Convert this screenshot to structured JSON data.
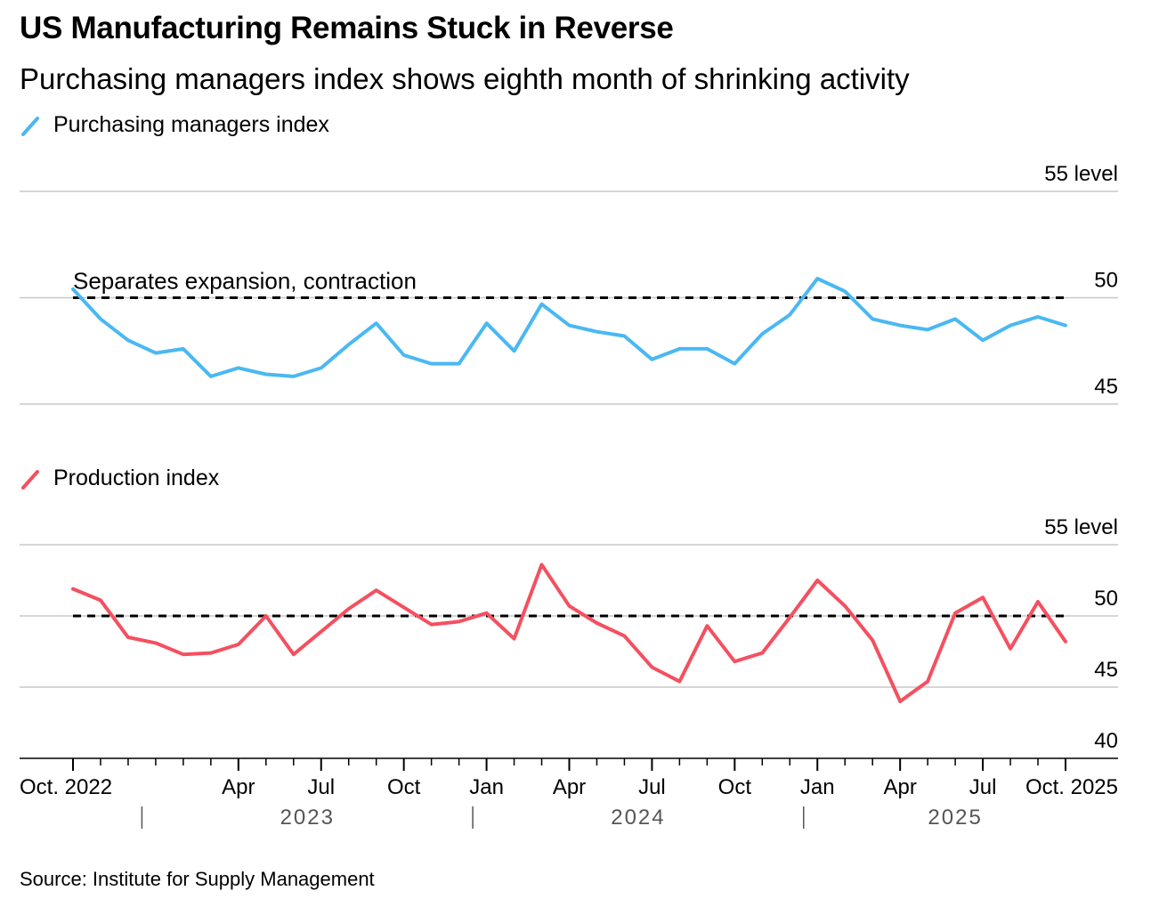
{
  "title": "US Manufacturing Remains Stuck in Reverse",
  "subtitle": "Purchasing managers index shows eighth month of shrinking activity",
  "source": "Source: Institute for Supply Management",
  "colors": {
    "pmi": "#4ab8f2",
    "production": "#f45060",
    "grid": "#c8c8c8",
    "axis": "#000000",
    "year": "#555555"
  },
  "chart_data": [
    {
      "type": "line",
      "name": "Purchasing managers index",
      "color": "#4ab8f2",
      "ylim": [
        45,
        55
      ],
      "yticks": [
        {
          "value": 55,
          "label": "55 level"
        },
        {
          "value": 50,
          "label": "50"
        },
        {
          "value": 45,
          "label": "45"
        }
      ],
      "reference_line": {
        "value": 50,
        "label": "Separates expansion, contraction"
      },
      "values": [
        50.4,
        49.0,
        48.0,
        47.4,
        47.6,
        46.3,
        46.7,
        46.4,
        46.3,
        46.7,
        47.8,
        48.8,
        47.3,
        46.9,
        46.9,
        48.8,
        47.5,
        49.7,
        48.7,
        48.4,
        48.2,
        47.1,
        47.6,
        47.6,
        46.9,
        48.3,
        49.2,
        50.9,
        50.3,
        49.0,
        48.7,
        48.5,
        49.0,
        48.0,
        48.7,
        49.1,
        48.7
      ]
    },
    {
      "type": "line",
      "name": "Production index",
      "color": "#f45060",
      "ylim": [
        40,
        55
      ],
      "yticks": [
        {
          "value": 55,
          "label": "55 level"
        },
        {
          "value": 50,
          "label": "50"
        },
        {
          "value": 45,
          "label": "45"
        },
        {
          "value": 40,
          "label": "40"
        }
      ],
      "reference_line": {
        "value": 50,
        "label": ""
      },
      "values": [
        51.9,
        51.1,
        48.5,
        48.1,
        47.3,
        47.4,
        48.0,
        50.0,
        47.3,
        48.9,
        50.5,
        51.8,
        50.6,
        49.4,
        49.6,
        50.2,
        48.4,
        53.6,
        50.7,
        49.5,
        48.6,
        46.4,
        45.4,
        49.3,
        46.8,
        47.4,
        49.9,
        52.5,
        50.7,
        48.3,
        44.0,
        45.4,
        50.2,
        51.3,
        47.7,
        51.0,
        48.2
      ]
    }
  ],
  "x_axis": {
    "count": 37,
    "month_labels": [
      {
        "index": 0,
        "label": "Oct. 2022"
      },
      {
        "index": 6,
        "label": "Apr"
      },
      {
        "index": 9,
        "label": "Jul"
      },
      {
        "index": 12,
        "label": "Oct"
      },
      {
        "index": 15,
        "label": "Jan"
      },
      {
        "index": 18,
        "label": "Apr"
      },
      {
        "index": 21,
        "label": "Jul"
      },
      {
        "index": 24,
        "label": "Oct"
      },
      {
        "index": 27,
        "label": "Jan"
      },
      {
        "index": 30,
        "label": "Apr"
      },
      {
        "index": 33,
        "label": "Jul"
      },
      {
        "index": 36,
        "label": "Oct. 2025"
      }
    ],
    "year_separators": [
      2.5,
      14.5,
      26.5
    ],
    "year_labels": [
      {
        "center": 8.5,
        "label": "2023"
      },
      {
        "center": 20.5,
        "label": "2024"
      },
      {
        "center": 32,
        "label": "2025"
      }
    ]
  }
}
